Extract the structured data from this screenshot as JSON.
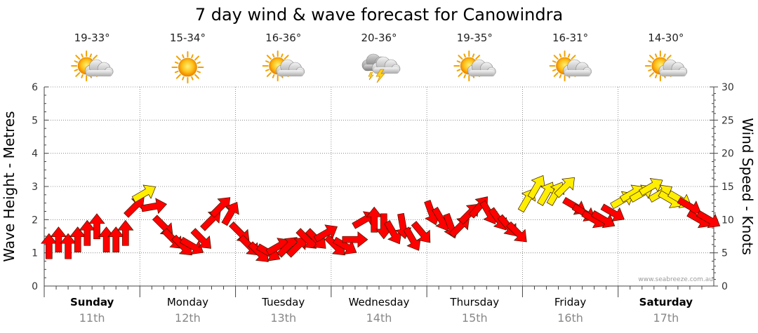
{
  "chart_data": {
    "type": "line",
    "title": "7 day wind & wave forecast for Canowindra",
    "ylabel_left": "Wave Height - Metres",
    "ylabel_right": "Wind Speed - Knots",
    "ylim_left": [
      0,
      6
    ],
    "ylim_right": [
      0,
      30
    ],
    "yticks_left": [
      "0",
      "1",
      "2",
      "3",
      "4",
      "5",
      "6"
    ],
    "yticks_right": [
      "0",
      "5",
      "10",
      "15",
      "20",
      "25",
      "30"
    ],
    "credit": "www.seabreeze.com.au",
    "days": [
      {
        "day": "Sunday",
        "date": "11th",
        "bold": true,
        "temp": "19-33°",
        "icon": "partly-cloudy"
      },
      {
        "day": "Monday",
        "date": "12th",
        "bold": false,
        "temp": "15-34°",
        "icon": "sunny"
      },
      {
        "day": "Tuesday",
        "date": "13th",
        "bold": false,
        "temp": "16-36°",
        "icon": "partly-cloudy"
      },
      {
        "day": "Wednesday",
        "date": "14th",
        "bold": false,
        "temp": "20-36°",
        "icon": "thunderstorm"
      },
      {
        "day": "Thursday",
        "date": "15th",
        "bold": false,
        "temp": "19-35°",
        "icon": "partly-cloudy"
      },
      {
        "day": "Friday",
        "date": "16th",
        "bold": false,
        "temp": "16-31°",
        "icon": "partly-cloudy"
      },
      {
        "day": "Saturday",
        "date": "17th",
        "bold": true,
        "temp": "14-30°",
        "icon": "partly-cloudy"
      }
    ],
    "wind_series": {
      "name": "Wind Speed (knots)",
      "x_day": [
        0.05,
        0.15,
        0.25,
        0.35,
        0.45,
        0.55,
        0.65,
        0.75,
        0.85,
        0.95,
        1.05,
        1.15,
        1.25,
        1.35,
        1.45,
        1.55,
        1.65,
        1.75,
        1.85,
        1.95,
        2.05,
        2.15,
        2.25,
        2.35,
        2.45,
        2.55,
        2.65,
        2.75,
        2.85,
        2.95,
        3.05,
        3.15,
        3.25,
        3.35,
        3.45,
        3.55,
        3.65,
        3.75,
        3.85,
        3.95,
        4.05,
        4.15,
        4.25,
        4.35,
        4.45,
        4.55,
        4.65,
        4.75,
        4.85,
        4.95,
        5.05,
        5.15,
        5.25,
        5.35,
        5.45,
        5.55,
        5.65,
        5.75,
        5.85,
        5.95,
        6.05,
        6.15,
        6.25,
        6.35,
        6.45,
        6.55,
        6.65,
        6.75,
        6.85,
        6.95
      ],
      "knots": [
        6,
        7,
        6,
        7,
        8,
        9,
        7,
        7,
        8,
        12,
        14,
        12,
        9,
        7,
        6,
        6,
        7,
        10,
        12,
        11,
        8,
        6,
        5,
        5,
        6,
        6,
        6,
        7,
        7,
        8,
        6,
        6,
        7,
        10,
        10,
        9,
        8,
        9,
        7,
        8,
        11,
        10,
        9,
        9,
        11,
        12,
        11,
        10,
        9,
        8,
        13,
        15,
        14,
        14,
        15,
        12,
        11,
        10,
        10,
        11,
        13,
        14,
        14,
        15,
        14,
        13,
        13,
        12,
        10,
        10
      ],
      "direction_deg": [
        0,
        0,
        0,
        0,
        0,
        0,
        0,
        0,
        0,
        45,
        60,
        80,
        135,
        135,
        135,
        120,
        135,
        45,
        45,
        30,
        135,
        135,
        135,
        120,
        60,
        45,
        45,
        135,
        135,
        60,
        135,
        120,
        90,
        60,
        0,
        180,
        150,
        170,
        150,
        140,
        160,
        150,
        160,
        45,
        45,
        40,
        150,
        145,
        140,
        135,
        30,
        30,
        30,
        30,
        45,
        120,
        120,
        120,
        120,
        120,
        60,
        60,
        60,
        60,
        60,
        120,
        120,
        120,
        120,
        120
      ]
    }
  }
}
